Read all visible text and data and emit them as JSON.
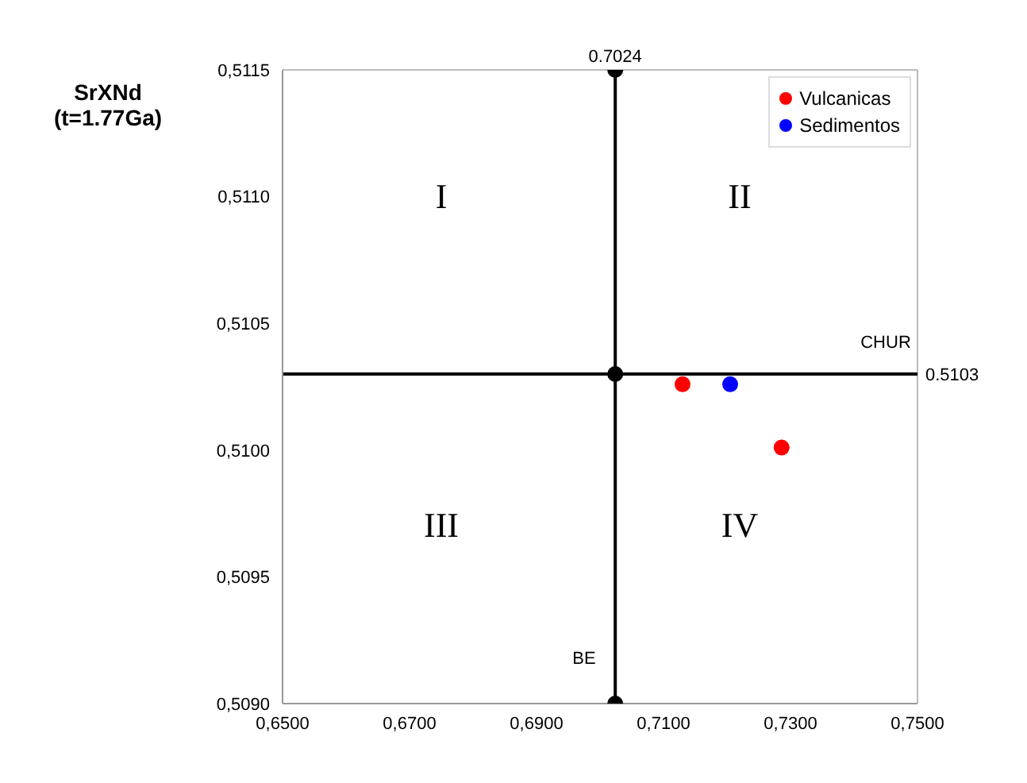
{
  "chart_data": {
    "type": "scatter",
    "ylabel": "SrXNd (t=1.77Ga)",
    "xlim": [
      0.65,
      0.75
    ],
    "xticks": [
      {
        "value": 0.65,
        "label": "0,6500"
      },
      {
        "value": 0.67,
        "label": "0,6700"
      },
      {
        "value": 0.69,
        "label": "0,6900"
      },
      {
        "value": 0.71,
        "label": "0,7100"
      },
      {
        "value": 0.73,
        "label": "0,7300"
      },
      {
        "value": 0.75,
        "label": "0,7500"
      }
    ],
    "ylim": [
      0.509,
      0.5115
    ],
    "yticks": [
      {
        "value": 0.509,
        "label": "0,5090"
      },
      {
        "value": 0.5095,
        "label": "0,5095"
      },
      {
        "value": 0.51,
        "label": "0,5100"
      },
      {
        "value": 0.5105,
        "label": "0,5105"
      },
      {
        "value": 0.511,
        "label": "0,5110"
      },
      {
        "value": 0.5115,
        "label": "0,5115"
      }
    ],
    "series": [
      {
        "name": "Vulcanicas",
        "color": "#ff0000",
        "x": [
          0.713,
          0.7286
        ],
        "values": [
          0.51026,
          0.51001
        ]
      },
      {
        "name": "Sedimentos",
        "color": "#0000ff",
        "x": [
          0.7205
        ],
        "values": [
          0.51026
        ]
      },
      {
        "color": "#000000",
        "x": [
          0.7024,
          0.7024,
          0.7024
        ],
        "values": [
          0.5115,
          0.5103,
          0.509
        ]
      }
    ],
    "ref_lines": [
      {
        "axis": "x",
        "value": 0.7024,
        "label": "0.7024",
        "color": "#000000"
      },
      {
        "axis": "y",
        "value": 0.5103,
        "label": "0.5103",
        "color": "#000000"
      }
    ],
    "annotations": [
      "CHUR",
      "BE",
      "I",
      "II",
      "III",
      "IV"
    ],
    "marker": "circle",
    "grid": false,
    "legend": "top right"
  }
}
